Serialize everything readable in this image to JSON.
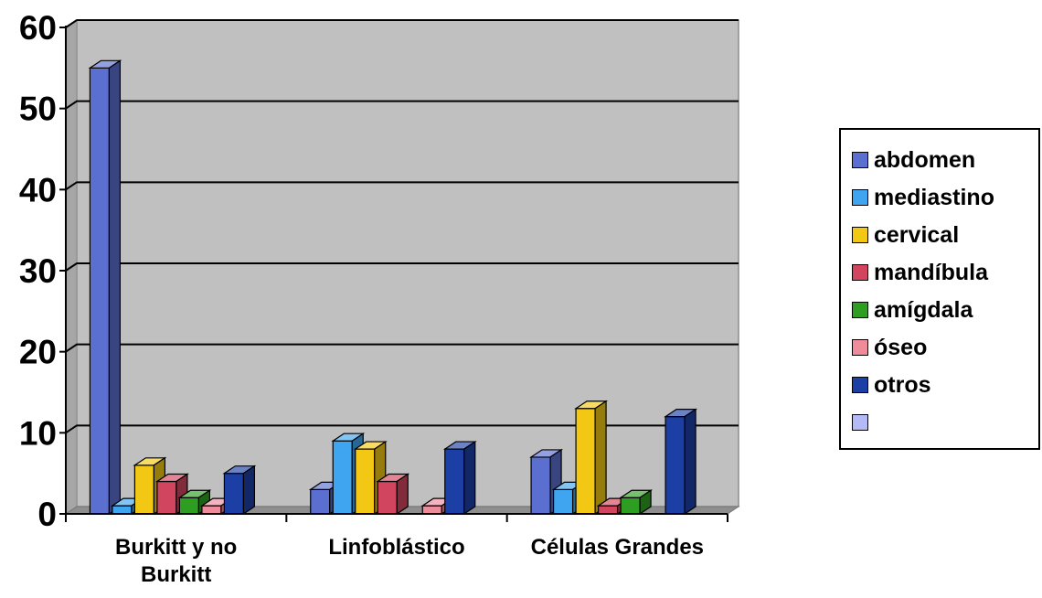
{
  "chart_data": {
    "type": "bar",
    "title": "",
    "xlabel": "",
    "ylabel": "",
    "ylim": [
      0,
      60
    ],
    "yticks": [
      "0",
      "10",
      "20",
      "30",
      "40",
      "50",
      "60"
    ],
    "grid": true,
    "legend_position": "right",
    "categories": [
      "Burkitt y no Burkitt",
      "Linfoblástico",
      "Células Grandes"
    ],
    "category_labels": [
      [
        "Burkitt y no",
        "Burkitt"
      ],
      [
        "Linfoblástico"
      ],
      [
        "Células Grandes"
      ]
    ],
    "series": [
      {
        "name": "abdomen",
        "color": "#5B6FD0",
        "values": [
          55,
          3,
          7
        ]
      },
      {
        "name": "mediastino",
        "color": "#3FA5F0",
        "values": [
          1,
          9,
          3
        ]
      },
      {
        "name": "cervical",
        "color": "#F2C814",
        "values": [
          6,
          8,
          13
        ]
      },
      {
        "name": "mandíbula",
        "color": "#D2455E",
        "values": [
          4,
          4,
          1
        ]
      },
      {
        "name": "amígdala",
        "color": "#2E9E22",
        "values": [
          2,
          0,
          2
        ]
      },
      {
        "name": "óseo",
        "color": "#EE8C9C",
        "values": [
          1,
          1,
          0
        ]
      },
      {
        "name": "otros",
        "color": "#1C3FA6",
        "values": [
          5,
          8,
          12
        ]
      },
      {
        "name": "",
        "color": "#B4B9F8",
        "values": [
          0,
          0,
          0
        ]
      }
    ]
  }
}
